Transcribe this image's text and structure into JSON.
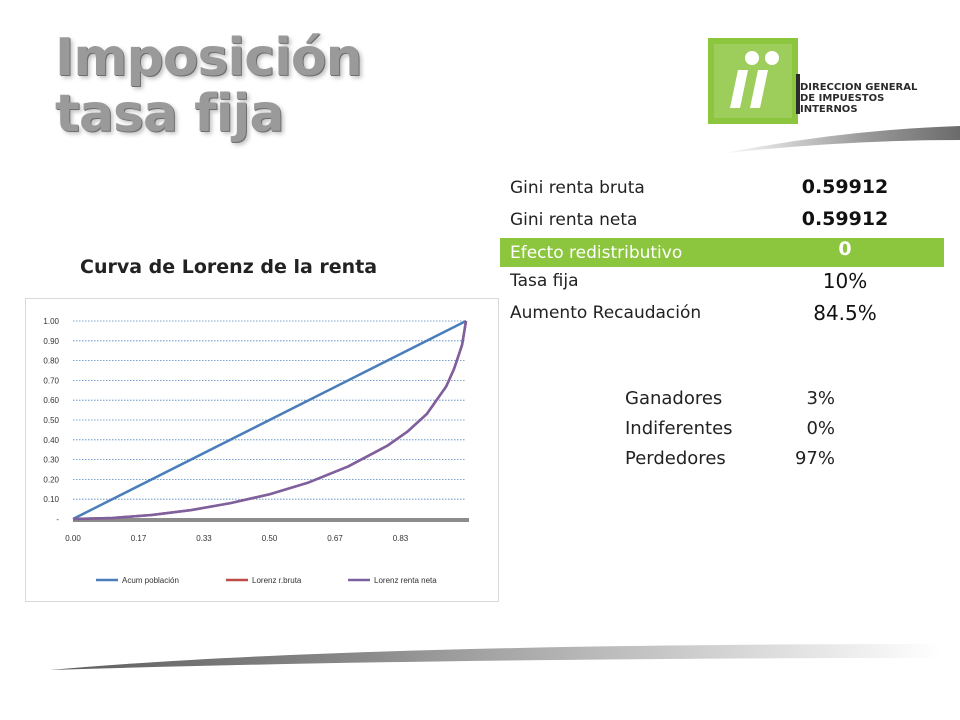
{
  "title": {
    "line1": "Imposición",
    "line2": "tasa fija"
  },
  "logo": {
    "line1": "DIRECCION GENERAL",
    "line2": "DE IMPUESTOS",
    "line3": "INTERNOS",
    "brand_color": "#8cc63f"
  },
  "stats": [
    {
      "label": "Gini renta bruta",
      "value": "0.59912",
      "highlight": false
    },
    {
      "label": "Gini renta neta",
      "value": "0.59912",
      "highlight": false
    },
    {
      "label": "Efecto redistributivo",
      "value": "0",
      "highlight": true
    },
    {
      "label": "Tasa fija",
      "value": "10%",
      "highlight": false
    },
    {
      "label": "Aumento Recaudación",
      "value": "84.5%",
      "highlight": false
    }
  ],
  "winners": [
    {
      "label": "Ganadores",
      "value": "3%"
    },
    {
      "label": "Indiferentes",
      "value": "0%"
    },
    {
      "label": "Perdedores",
      "value": "97%"
    }
  ],
  "chart_data": {
    "type": "line",
    "title": "Curva de Lorenz de la renta",
    "xlim": [
      0,
      1
    ],
    "ylim": [
      0,
      1
    ],
    "x_ticks": [
      "0.00",
      "0.17",
      "0.33",
      "0.50",
      "0.67",
      "0.83"
    ],
    "x_tick_values": [
      0,
      0.1667,
      0.3333,
      0.5,
      0.6667,
      0.8333
    ],
    "y_ticks": [
      "-",
      "0.10",
      "0.20",
      "0.30",
      "0.40",
      "0.50",
      "0.60",
      "0.70",
      "0.80",
      "0.90",
      "1.00"
    ],
    "y_tick_values": [
      0,
      0.1,
      0.2,
      0.3,
      0.4,
      0.5,
      0.6,
      0.7,
      0.8,
      0.9,
      1.0
    ],
    "grid": true,
    "legend_position": "bottom",
    "series": [
      {
        "name": "Acum población",
        "color": "#4a7ebb",
        "x": [
          0,
          1
        ],
        "y": [
          0,
          1
        ]
      },
      {
        "name": "Lorenz r.bruta",
        "color": "#be4b48",
        "x": [
          0,
          0.1,
          0.2,
          0.3,
          0.4,
          0.5,
          0.6,
          0.7,
          0.8,
          0.85,
          0.9,
          0.95,
          0.97,
          0.99,
          1.0
        ],
        "y": [
          0,
          0.005,
          0.02,
          0.045,
          0.08,
          0.125,
          0.185,
          0.265,
          0.37,
          0.44,
          0.53,
          0.67,
          0.76,
          0.88,
          1.0
        ]
      },
      {
        "name": "Lorenz renta neta",
        "color": "#7d60a0",
        "x": [
          0,
          0.1,
          0.2,
          0.3,
          0.4,
          0.5,
          0.6,
          0.7,
          0.8,
          0.85,
          0.9,
          0.95,
          0.97,
          0.99,
          1.0
        ],
        "y": [
          0,
          0.005,
          0.02,
          0.045,
          0.08,
          0.125,
          0.185,
          0.265,
          0.37,
          0.44,
          0.53,
          0.67,
          0.76,
          0.88,
          1.0
        ]
      }
    ]
  }
}
